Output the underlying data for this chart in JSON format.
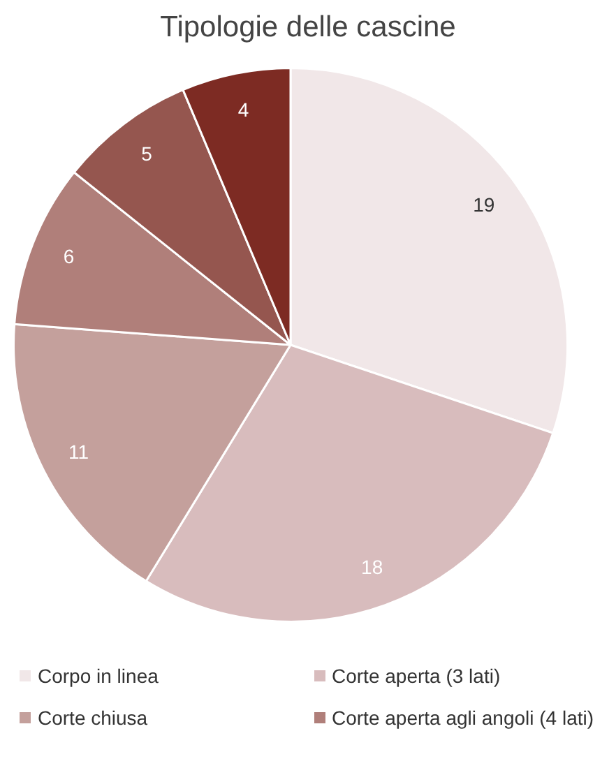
{
  "chart_data": {
    "type": "pie",
    "title": "Tipologie delle cascine",
    "categories": [
      "Corpo in linea",
      "Corte aperta (3 lati)",
      "Corte chiusa",
      "Corte aperta agli angoli (4 lati)",
      null,
      null
    ],
    "values": [
      19,
      18,
      11,
      6,
      5,
      4
    ],
    "colors": [
      "#f1e7e8",
      "#d8bcbd",
      "#c4a09c",
      "#b07f7a",
      "#95564f",
      "#7d2b23"
    ],
    "data_labels": true,
    "legend": "bottom"
  }
}
